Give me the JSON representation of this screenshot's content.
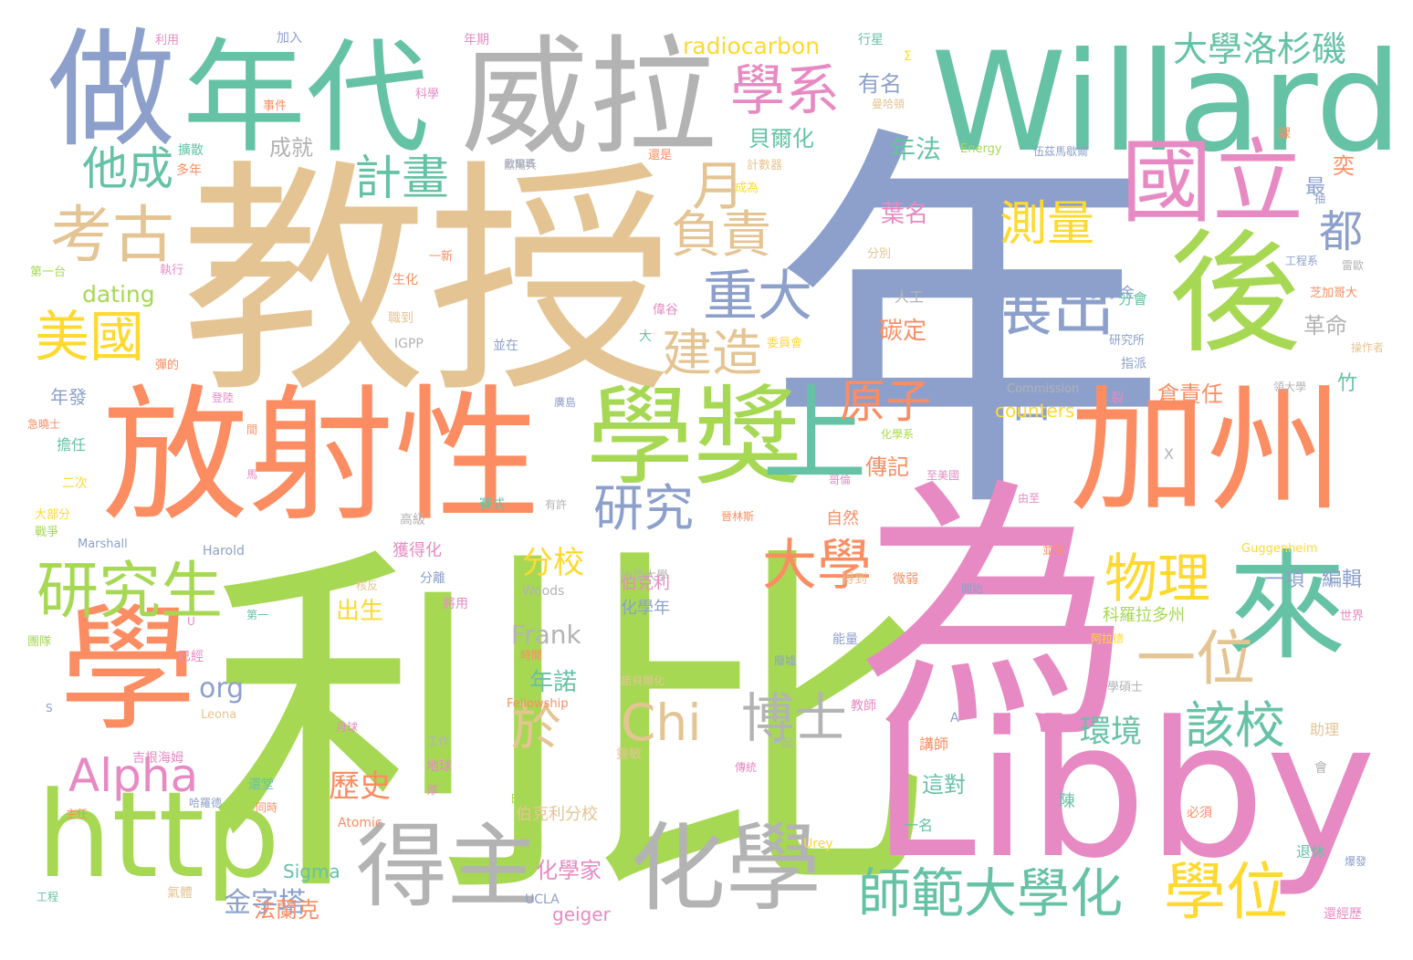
{
  "palette": {
    "green": "#a6d854",
    "pink": "#e78ac3",
    "orange": "#fc8d62",
    "teal": "#66c2a5",
    "blue": "#8da0cb",
    "tan": "#e5c494",
    "gray": "#b3b3b3",
    "yellow": "#ffd92f"
  },
  "words": [
    {
      "text": "年",
      "color": "blue"
    },
    {
      "text": "利比",
      "color": "green"
    },
    {
      "text": "教授",
      "color": "tan"
    },
    {
      "text": "為",
      "color": "pink"
    },
    {
      "text": "放射性",
      "color": "orange"
    },
    {
      "text": "Libby",
      "color": "pink"
    },
    {
      "text": "Willard",
      "color": "teal"
    },
    {
      "text": "威拉",
      "color": "gray"
    },
    {
      "text": "年代",
      "color": "teal"
    },
    {
      "text": "做",
      "color": "blue"
    },
    {
      "text": "學",
      "color": "orange"
    },
    {
      "text": "http",
      "color": "green"
    },
    {
      "text": "加州",
      "color": "orange"
    },
    {
      "text": "後",
      "color": "green"
    },
    {
      "text": "來",
      "color": "teal"
    },
    {
      "text": "得主",
      "color": "gray"
    },
    {
      "text": "化學",
      "color": "gray"
    },
    {
      "text": "學獎",
      "color": "green"
    },
    {
      "text": "上",
      "color": "teal"
    },
    {
      "text": "國立",
      "color": "pink"
    },
    {
      "text": "學系",
      "color": "pink"
    },
    {
      "text": "師範大學化",
      "color": "teal"
    },
    {
      "text": "學位",
      "color": "yellow"
    },
    {
      "text": "研究生",
      "color": "green"
    },
    {
      "text": "考古",
      "color": "tan"
    },
    {
      "text": "美國",
      "color": "yellow"
    },
    {
      "text": "他成",
      "color": "teal"
    },
    {
      "text": "計畫",
      "color": "teal"
    },
    {
      "text": "大學洛杉磯",
      "color": "teal"
    },
    {
      "text": "測量",
      "color": "yellow"
    },
    {
      "text": "展出",
      "color": "blue"
    },
    {
      "text": "重大",
      "color": "blue"
    },
    {
      "text": "負責",
      "color": "tan"
    },
    {
      "text": "建造",
      "color": "tan"
    },
    {
      "text": "月",
      "color": "tan"
    },
    {
      "text": "都",
      "color": "blue"
    },
    {
      "text": "一位",
      "color": "tan"
    },
    {
      "text": "物理",
      "color": "yellow"
    },
    {
      "text": "博士",
      "color": "gray"
    },
    {
      "text": "該校",
      "color": "teal"
    },
    {
      "text": "大學",
      "color": "orange"
    },
    {
      "text": "原子",
      "color": "orange"
    },
    {
      "text": "日",
      "color": "blue"
    },
    {
      "text": "研究",
      "color": "blue"
    },
    {
      "text": "Alpha",
      "color": "pink"
    },
    {
      "text": "於",
      "color": "tan"
    },
    {
      "text": "Chi",
      "color": "tan"
    },
    {
      "text": "金字塔",
      "color": "blue"
    },
    {
      "text": "環境",
      "color": "teal"
    },
    {
      "text": "歷史",
      "color": "orange"
    },
    {
      "text": "分校",
      "color": "yellow"
    },
    {
      "text": "Frank",
      "color": "gray"
    },
    {
      "text": "radiocarbon",
      "color": "yellow"
    },
    {
      "text": "dating",
      "color": "green"
    },
    {
      "text": "org",
      "color": "blue"
    },
    {
      "text": "counters",
      "color": "yellow"
    },
    {
      "text": "geiger",
      "color": "pink"
    },
    {
      "text": "Sigma",
      "color": "teal"
    },
    {
      "text": "Commission",
      "color": "gray"
    },
    {
      "text": "Energy",
      "color": "green"
    },
    {
      "text": "Guggenheim",
      "color": "yellow"
    },
    {
      "text": "Fellowship",
      "color": "orange"
    },
    {
      "text": "Atomic",
      "color": "orange"
    },
    {
      "text": "Harold",
      "color": "blue"
    },
    {
      "text": "Marshall",
      "color": "blue"
    },
    {
      "text": "UCLA",
      "color": "blue"
    },
    {
      "text": "Urey",
      "color": "yellow"
    },
    {
      "text": "Woods",
      "color": "gray"
    },
    {
      "text": "Leona",
      "color": "tan"
    },
    {
      "text": "IGPP",
      "color": "gray"
    },
    {
      "text": "年法",
      "color": "teal"
    },
    {
      "text": "貝爾化",
      "color": "teal"
    },
    {
      "text": "有名",
      "color": "blue"
    },
    {
      "text": "成就",
      "color": "gray"
    },
    {
      "text": "葉名",
      "color": "pink"
    },
    {
      "text": "碳定",
      "color": "orange"
    },
    {
      "text": "傳記",
      "color": "orange"
    },
    {
      "text": "出生",
      "color": "yellow"
    },
    {
      "text": "年諾",
      "color": "teal"
    },
    {
      "text": "法蘭克",
      "color": "orange"
    },
    {
      "text": "化學家",
      "color": "pink"
    },
    {
      "text": "伯克利分校",
      "color": "tan"
    },
    {
      "text": "一項",
      "color": "blue"
    },
    {
      "text": "編輯",
      "color": "blue"
    },
    {
      "text": "革命",
      "color": "gray"
    },
    {
      "text": "倉責任",
      "color": "orange"
    },
    {
      "text": "這對",
      "color": "teal"
    },
    {
      "text": "年發",
      "color": "blue"
    },
    {
      "text": "竹",
      "color": "teal"
    },
    {
      "text": "奕",
      "color": "orange"
    },
    {
      "text": "最",
      "color": "blue"
    },
    {
      "text": "科羅拉多州",
      "color": "green"
    },
    {
      "text": "獎學金",
      "color": "blue"
    },
    {
      "text": "分會",
      "color": "teal"
    },
    {
      "text": "研究所",
      "color": "blue"
    },
    {
      "text": "指派",
      "color": "blue"
    },
    {
      "text": "人工",
      "color": "gray"
    },
    {
      "text": "分別",
      "color": "tan"
    },
    {
      "text": "委員會",
      "color": "yellow"
    },
    {
      "text": "自然",
      "color": "orange"
    },
    {
      "text": "伯克利",
      "color": "pink"
    },
    {
      "text": "比亞大學",
      "color": "gray"
    },
    {
      "text": "化學年",
      "color": "blue"
    },
    {
      "text": "獲得化",
      "color": "pink"
    },
    {
      "text": "一名",
      "color": "teal"
    },
    {
      "text": "講師",
      "color": "orange"
    },
    {
      "text": "學碩士",
      "color": "gray"
    },
    {
      "text": "助理",
      "color": "tan"
    },
    {
      "text": "退休",
      "color": "teal"
    },
    {
      "text": "還經歷",
      "color": "pink"
    },
    {
      "text": "必須",
      "color": "orange"
    },
    {
      "text": "陳",
      "color": "teal"
    },
    {
      "text": "世界",
      "color": "pink"
    },
    {
      "text": "芝加哥大",
      "color": "orange"
    },
    {
      "text": "靈敏",
      "color": "tan"
    },
    {
      "text": "地球",
      "color": "pink"
    },
    {
      "text": "吉根海姆",
      "color": "pink"
    },
    {
      "text": "還堂",
      "color": "teal"
    },
    {
      "text": "擔任",
      "color": "teal"
    },
    {
      "text": "高級",
      "color": "gray"
    },
    {
      "text": "二次",
      "color": "yellow"
    },
    {
      "text": "大部分",
      "color": "yellow"
    },
    {
      "text": "戰爭",
      "color": "green"
    },
    {
      "text": "團隊",
      "color": "green"
    },
    {
      "text": "第一台",
      "color": "green"
    },
    {
      "text": "執行",
      "color": "pink"
    },
    {
      "text": "一新",
      "color": "orange"
    },
    {
      "text": "生化",
      "color": "orange"
    },
    {
      "text": "並在",
      "color": "blue"
    },
    {
      "text": "彈的",
      "color": "orange"
    },
    {
      "text": "職到",
      "color": "tan"
    },
    {
      "text": "偉谷",
      "color": "pink"
    },
    {
      "text": "大",
      "color": "teal"
    },
    {
      "text": "計數器",
      "color": "tan"
    },
    {
      "text": "成為",
      "color": "yellow"
    },
    {
      "text": "還是",
      "color": "orange"
    },
    {
      "text": "多年",
      "color": "orange"
    },
    {
      "text": "擴散",
      "color": "teal"
    },
    {
      "text": "事件",
      "color": "orange"
    },
    {
      "text": "科學",
      "color": "pink"
    },
    {
      "text": "利用",
      "color": "pink"
    },
    {
      "text": "加入",
      "color": "blue"
    },
    {
      "text": "年期",
      "color": "pink"
    },
    {
      "text": "行星",
      "color": "teal"
    },
    {
      "text": "曼哈頓",
      "color": "tan"
    },
    {
      "text": "伍茲馬歇爾",
      "color": "blue"
    },
    {
      "text": "歌爾瑪",
      "color": "blue"
    },
    {
      "text": "課",
      "color": "orange"
    },
    {
      "text": "抽",
      "color": "blue"
    },
    {
      "text": "雷歐",
      "color": "gray"
    },
    {
      "text": "工程系",
      "color": "blue"
    },
    {
      "text": "操作者",
      "color": "tan"
    },
    {
      "text": "領大學",
      "color": "gray"
    },
    {
      "text": "化學系",
      "color": "green"
    },
    {
      "text": "哥倫",
      "color": "pink"
    },
    {
      "text": "至美國",
      "color": "pink"
    },
    {
      "text": "晉林斯",
      "color": "orange"
    },
    {
      "text": "微弱",
      "color": "orange"
    },
    {
      "text": "並任",
      "color": "orange"
    },
    {
      "text": "由至",
      "color": "pink"
    },
    {
      "text": "開始",
      "color": "blue"
    },
    {
      "text": "得到",
      "color": "tan"
    },
    {
      "text": "能量",
      "color": "blue"
    },
    {
      "text": "阿拉德",
      "color": "yellow"
    },
    {
      "text": "時間",
      "color": "orange"
    },
    {
      "text": "廢墟",
      "color": "blue"
    },
    {
      "text": "諾貝爾化",
      "color": "tan"
    },
    {
      "text": "教師",
      "color": "pink"
    },
    {
      "text": "核反",
      "color": "tan"
    },
    {
      "text": "將用",
      "color": "pink"
    },
    {
      "text": "分離",
      "color": "blue"
    },
    {
      "text": "第一",
      "color": "teal"
    },
    {
      "text": "已經",
      "color": "pink"
    },
    {
      "text": "月球",
      "color": "pink"
    },
    {
      "text": "有許",
      "color": "gray"
    },
    {
      "text": "賽式",
      "color": "teal"
    },
    {
      "text": "廣島",
      "color": "blue"
    },
    {
      "text": "間",
      "color": "orange"
    },
    {
      "text": "登陸",
      "color": "pink"
    },
    {
      "text": "急曉士",
      "color": "orange"
    },
    {
      "text": "馬",
      "color": "pink"
    },
    {
      "text": "工作",
      "color": "gray"
    },
    {
      "text": "一起",
      "color": "gray"
    },
    {
      "text": "傳統",
      "color": "pink"
    },
    {
      "text": "會",
      "color": "gray"
    },
    {
      "text": "爆發",
      "color": "blue"
    },
    {
      "text": "主任",
      "color": "orange"
    },
    {
      "text": "哈羅德",
      "color": "blue"
    },
    {
      "text": "同時",
      "color": "orange"
    },
    {
      "text": "時",
      "color": "green"
    },
    {
      "text": "厚",
      "color": "pink"
    },
    {
      "text": "工程",
      "color": "teal"
    },
    {
      "text": "氣體",
      "color": "tan"
    },
    {
      "text": "歐陽兵",
      "color": "gray"
    },
    {
      "text": "Σ",
      "color": "yellow"
    },
    {
      "text": "X",
      "color": "gray"
    },
    {
      "text": "U",
      "color": "pink"
    },
    {
      "text": "A",
      "color": "blue"
    },
    {
      "text": "S",
      "color": "blue"
    },
    {
      "text": "裂",
      "color": "pink"
    }
  ]
}
